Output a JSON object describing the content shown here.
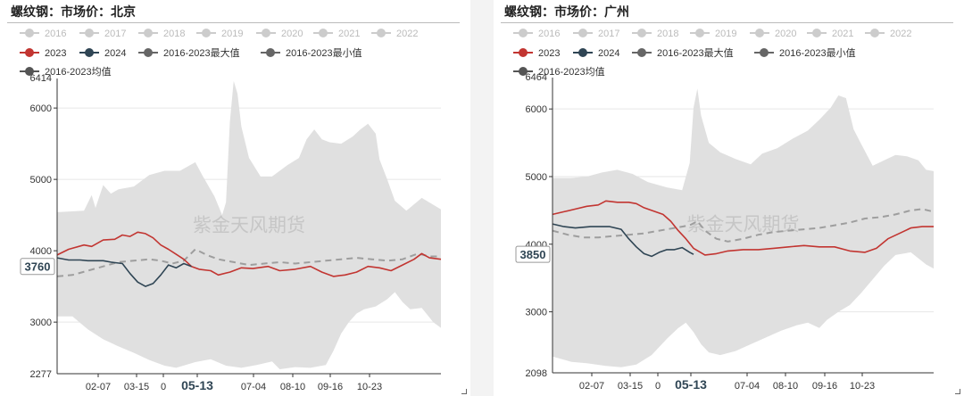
{
  "chart_data": [
    {
      "type": "line",
      "title": "螺纹钢：市场价：北京",
      "watermark": "紫金天风期货",
      "ylim": [
        2277,
        6414
      ],
      "y_ticks": [
        3000,
        4000,
        5000,
        6000
      ],
      "y_min_label": "2277",
      "y_max_label": "6414",
      "x_tick_labels": [
        "02-07",
        "03-15",
        "0",
        "05-13",
        "07-04",
        "08-10",
        "09-16",
        "10-23"
      ],
      "x_tick_bold": "05-13",
      "value_label": "3760",
      "legend_inactive": [
        "2016",
        "2017",
        "2018",
        "2019",
        "2020",
        "2021",
        "2022"
      ],
      "series": [
        {
          "name": "2023",
          "color": "#c23531"
        },
        {
          "name": "2024",
          "color": "#2f4554"
        },
        {
          "name": "2016-2023最大值",
          "color": "#666666"
        },
        {
          "name": "2016-2023最小值",
          "color": "#666666"
        },
        {
          "name": "2016-2023均值",
          "color": "#555555"
        }
      ],
      "band_max": [
        [
          0,
          4540
        ],
        [
          7,
          4560
        ],
        [
          9,
          4780
        ],
        [
          10,
          4600
        ],
        [
          12,
          4920
        ],
        [
          14,
          4800
        ],
        [
          16,
          4860
        ],
        [
          20,
          4900
        ],
        [
          24,
          5060
        ],
        [
          28,
          5120
        ],
        [
          32,
          5120
        ],
        [
          36,
          5240
        ],
        [
          38,
          5040
        ],
        [
          41,
          4760
        ],
        [
          43,
          4500
        ],
        [
          44,
          4680
        ],
        [
          45,
          5800
        ],
        [
          46,
          6380
        ],
        [
          47,
          6200
        ],
        [
          48,
          5740
        ],
        [
          50,
          5300
        ],
        [
          53,
          5040
        ],
        [
          56,
          5040
        ],
        [
          60,
          5200
        ],
        [
          63,
          5300
        ],
        [
          65,
          5560
        ],
        [
          67,
          5700
        ],
        [
          69,
          5560
        ],
        [
          71,
          5520
        ],
        [
          74,
          5500
        ],
        [
          77,
          5600
        ],
        [
          79,
          5700
        ],
        [
          81,
          5780
        ],
        [
          83,
          5640
        ],
        [
          84,
          5280
        ],
        [
          86,
          5000
        ],
        [
          88,
          4700
        ],
        [
          91,
          4560
        ],
        [
          95,
          4740
        ],
        [
          100,
          4580
        ]
      ],
      "band_min": [
        [
          0,
          3080
        ],
        [
          4,
          3080
        ],
        [
          8,
          2900
        ],
        [
          12,
          2760
        ],
        [
          16,
          2660
        ],
        [
          20,
          2570
        ],
        [
          24,
          2470
        ],
        [
          28,
          2390
        ],
        [
          31,
          2360
        ],
        [
          36,
          2440
        ],
        [
          40,
          2480
        ],
        [
          44,
          2390
        ],
        [
          48,
          2360
        ],
        [
          52,
          2400
        ],
        [
          56,
          2450
        ],
        [
          58,
          2340
        ],
        [
          62,
          2370
        ],
        [
          66,
          2360
        ],
        [
          70,
          2400
        ],
        [
          72,
          2600
        ],
        [
          74,
          2840
        ],
        [
          76,
          3000
        ],
        [
          78,
          3120
        ],
        [
          80,
          3180
        ],
        [
          83,
          3220
        ],
        [
          86,
          3320
        ],
        [
          88,
          3420
        ],
        [
          90,
          3280
        ],
        [
          92,
          3180
        ],
        [
          95,
          3200
        ],
        [
          98,
          3000
        ],
        [
          100,
          2920
        ]
      ],
      "series_2023": [
        [
          0,
          3940
        ],
        [
          3,
          4020
        ],
        [
          7,
          4080
        ],
        [
          9,
          4060
        ],
        [
          12,
          4150
        ],
        [
          15,
          4160
        ],
        [
          17,
          4220
        ],
        [
          19,
          4200
        ],
        [
          21,
          4260
        ],
        [
          23,
          4240
        ],
        [
          25,
          4180
        ],
        [
          27,
          4080
        ],
        [
          29,
          4020
        ],
        [
          31,
          3950
        ],
        [
          33,
          3880
        ],
        [
          35,
          3780
        ],
        [
          37,
          3740
        ],
        [
          40,
          3720
        ],
        [
          42,
          3660
        ],
        [
          45,
          3700
        ],
        [
          48,
          3760
        ],
        [
          51,
          3750
        ],
        [
          55,
          3780
        ],
        [
          58,
          3720
        ],
        [
          62,
          3740
        ],
        [
          66,
          3780
        ],
        [
          69,
          3700
        ],
        [
          72,
          3640
        ],
        [
          75,
          3660
        ],
        [
          78,
          3700
        ],
        [
          81,
          3780
        ],
        [
          84,
          3760
        ],
        [
          87,
          3720
        ],
        [
          90,
          3800
        ],
        [
          93,
          3880
        ],
        [
          95,
          3960
        ],
        [
          97,
          3900
        ],
        [
          100,
          3880
        ]
      ],
      "series_2024": [
        [
          0,
          3900
        ],
        [
          3,
          3870
        ],
        [
          6,
          3870
        ],
        [
          8,
          3860
        ],
        [
          12,
          3860
        ],
        [
          14,
          3840
        ],
        [
          17,
          3820
        ],
        [
          19,
          3680
        ],
        [
          21,
          3560
        ],
        [
          23,
          3500
        ],
        [
          25,
          3540
        ],
        [
          27,
          3660
        ],
        [
          29,
          3800
        ],
        [
          31,
          3760
        ],
        [
          33,
          3820
        ],
        [
          35,
          3780
        ]
      ],
      "series_avg": [
        [
          0,
          3640
        ],
        [
          4,
          3660
        ],
        [
          8,
          3720
        ],
        [
          12,
          3780
        ],
        [
          16,
          3840
        ],
        [
          20,
          3860
        ],
        [
          24,
          3880
        ],
        [
          27,
          3860
        ],
        [
          30,
          3820
        ],
        [
          33,
          3860
        ],
        [
          36,
          4020
        ],
        [
          39,
          3940
        ],
        [
          42,
          3880
        ],
        [
          46,
          3840
        ],
        [
          50,
          3800
        ],
        [
          54,
          3820
        ],
        [
          58,
          3840
        ],
        [
          62,
          3820
        ],
        [
          66,
          3840
        ],
        [
          70,
          3860
        ],
        [
          74,
          3880
        ],
        [
          78,
          3900
        ],
        [
          82,
          3880
        ],
        [
          86,
          3860
        ],
        [
          90,
          3880
        ],
        [
          94,
          3960
        ],
        [
          97,
          3920
        ],
        [
          100,
          3920
        ]
      ]
    },
    {
      "type": "line",
      "title": "螺纹钢：市场价：广州",
      "watermark": "紫金天风期货",
      "ylim": [
        2098,
        6464
      ],
      "y_ticks": [
        3000,
        4000,
        5000,
        6000
      ],
      "y_min_label": "2098",
      "y_max_label": "6464",
      "x_tick_labels": [
        "02-07",
        "03-15",
        "0",
        "05-13",
        "07-04",
        "08-10",
        "09-16",
        "10-23"
      ],
      "x_tick_bold": "05-13",
      "value_label": "3850",
      "legend_inactive": [
        "2016",
        "2017",
        "2018",
        "2019",
        "2020",
        "2021",
        "2022"
      ],
      "series": [
        {
          "name": "2023",
          "color": "#c23531"
        },
        {
          "name": "2024",
          "color": "#2f4554"
        },
        {
          "name": "2016-2023最大值",
          "color": "#666666"
        },
        {
          "name": "2016-2023最小值",
          "color": "#666666"
        },
        {
          "name": "2016-2023均值",
          "color": "#555555"
        }
      ],
      "band_max": [
        [
          0,
          4980
        ],
        [
          5,
          4980
        ],
        [
          9,
          5000
        ],
        [
          13,
          5060
        ],
        [
          17,
          5100
        ],
        [
          21,
          5040
        ],
        [
          25,
          4920
        ],
        [
          30,
          4840
        ],
        [
          34,
          4800
        ],
        [
          36,
          5200
        ],
        [
          37,
          6020
        ],
        [
          38,
          6300
        ],
        [
          39,
          5900
        ],
        [
          41,
          5500
        ],
        [
          44,
          5360
        ],
        [
          48,
          5260
        ],
        [
          52,
          5180
        ],
        [
          55,
          5340
        ],
        [
          59,
          5420
        ],
        [
          63,
          5560
        ],
        [
          67,
          5680
        ],
        [
          70,
          5840
        ],
        [
          73,
          6020
        ],
        [
          75,
          6200
        ],
        [
          77,
          6160
        ],
        [
          79,
          5700
        ],
        [
          81,
          5480
        ],
        [
          84,
          5160
        ],
        [
          87,
          5240
        ],
        [
          90,
          5320
        ],
        [
          93,
          5300
        ],
        [
          96,
          5240
        ],
        [
          98,
          5100
        ],
        [
          100,
          5080
        ]
      ],
      "band_min": [
        [
          0,
          2340
        ],
        [
          5,
          2260
        ],
        [
          9,
          2240
        ],
        [
          14,
          2200
        ],
        [
          18,
          2180
        ],
        [
          22,
          2220
        ],
        [
          26,
          2360
        ],
        [
          30,
          2600
        ],
        [
          33,
          2760
        ],
        [
          35,
          2840
        ],
        [
          37,
          2700
        ],
        [
          39,
          2520
        ],
        [
          41,
          2400
        ],
        [
          44,
          2360
        ],
        [
          48,
          2420
        ],
        [
          52,
          2520
        ],
        [
          56,
          2620
        ],
        [
          60,
          2720
        ],
        [
          64,
          2800
        ],
        [
          67,
          2840
        ],
        [
          70,
          2760
        ],
        [
          72,
          2880
        ],
        [
          75,
          3000
        ],
        [
          78,
          3100
        ],
        [
          81,
          3280
        ],
        [
          84,
          3480
        ],
        [
          87,
          3680
        ],
        [
          90,
          3840
        ],
        [
          94,
          3880
        ],
        [
          98,
          3700
        ],
        [
          100,
          3640
        ]
      ],
      "series_2023": [
        [
          0,
          4440
        ],
        [
          3,
          4480
        ],
        [
          6,
          4520
        ],
        [
          9,
          4560
        ],
        [
          12,
          4580
        ],
        [
          14,
          4640
        ],
        [
          17,
          4620
        ],
        [
          20,
          4620
        ],
        [
          22,
          4600
        ],
        [
          24,
          4540
        ],
        [
          26,
          4500
        ],
        [
          29,
          4440
        ],
        [
          31,
          4340
        ],
        [
          33,
          4200
        ],
        [
          35,
          4080
        ],
        [
          37,
          3940
        ],
        [
          40,
          3840
        ],
        [
          43,
          3860
        ],
        [
          46,
          3900
        ],
        [
          50,
          3920
        ],
        [
          54,
          3920
        ],
        [
          58,
          3940
        ],
        [
          62,
          3960
        ],
        [
          66,
          3980
        ],
        [
          70,
          3960
        ],
        [
          74,
          3960
        ],
        [
          78,
          3900
        ],
        [
          82,
          3880
        ],
        [
          85,
          3940
        ],
        [
          88,
          4080
        ],
        [
          91,
          4160
        ],
        [
          94,
          4240
        ],
        [
          97,
          4260
        ],
        [
          100,
          4260
        ]
      ],
      "series_2024": [
        [
          0,
          4300
        ],
        [
          3,
          4260
        ],
        [
          6,
          4240
        ],
        [
          10,
          4260
        ],
        [
          15,
          4260
        ],
        [
          18,
          4220
        ],
        [
          20,
          4080
        ],
        [
          22,
          3960
        ],
        [
          24,
          3860
        ],
        [
          26,
          3820
        ],
        [
          28,
          3880
        ],
        [
          30,
          3920
        ],
        [
          32,
          3920
        ],
        [
          34,
          3950
        ],
        [
          36,
          3880
        ],
        [
          37,
          3850
        ]
      ],
      "series_avg": [
        [
          0,
          4200
        ],
        [
          4,
          4140
        ],
        [
          8,
          4100
        ],
        [
          12,
          4100
        ],
        [
          16,
          4120
        ],
        [
          20,
          4140
        ],
        [
          24,
          4160
        ],
        [
          28,
          4200
        ],
        [
          32,
          4240
        ],
        [
          34,
          4260
        ],
        [
          36,
          4280
        ],
        [
          38,
          4340
        ],
        [
          40,
          4200
        ],
        [
          43,
          4080
        ],
        [
          46,
          4040
        ],
        [
          50,
          4080
        ],
        [
          54,
          4140
        ],
        [
          58,
          4180
        ],
        [
          62,
          4200
        ],
        [
          66,
          4220
        ],
        [
          70,
          4240
        ],
        [
          74,
          4280
        ],
        [
          78,
          4320
        ],
        [
          82,
          4380
        ],
        [
          86,
          4400
        ],
        [
          90,
          4440
        ],
        [
          94,
          4500
        ],
        [
          97,
          4520
        ],
        [
          100,
          4480
        ]
      ]
    }
  ]
}
